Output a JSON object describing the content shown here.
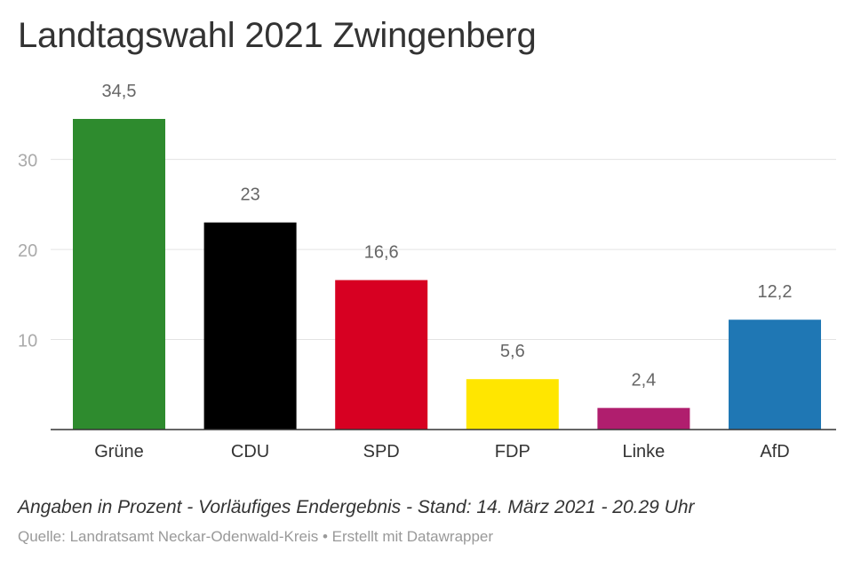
{
  "chart_data": {
    "type": "bar",
    "title": "Landtagswahl 2021 Zwingenberg",
    "categories": [
      "Grüne",
      "CDU",
      "SPD",
      "FDP",
      "Linke",
      "AfD"
    ],
    "values": [
      34.5,
      23,
      16.6,
      5.6,
      2.4,
      12.2
    ],
    "value_labels": [
      "34,5",
      "23",
      "16,6",
      "5,6",
      "2,4",
      "12,2"
    ],
    "colors": [
      "#2e8b2e",
      "#000000",
      "#d70022",
      "#ffe600",
      "#b01e6e",
      "#1f77b4"
    ],
    "ylim": [
      0,
      34.5
    ],
    "yticks": [
      10,
      20,
      30
    ],
    "grid": true,
    "xlabel": "",
    "ylabel": ""
  },
  "footer": {
    "note": "Angaben in Prozent - Vorläufiges Endergebnis - Stand: 14. März 2021 - 20.29 Uhr",
    "source": "Quelle: Landratsamt Neckar-Odenwald-Kreis • Erstellt mit Datawrapper"
  }
}
